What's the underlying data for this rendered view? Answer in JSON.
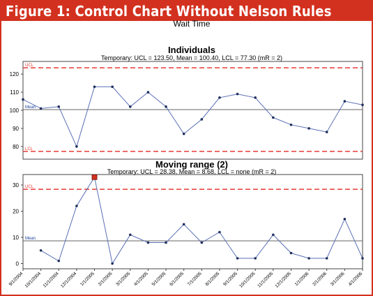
{
  "figure": {
    "banner_title": "Figure 1: Control Chart Without Nelson Rules",
    "banner_color": "#d3311f"
  },
  "chart_data": [
    {
      "type": "line",
      "title": "Individuals",
      "suptitle": "Wait Time",
      "subtitle": "Temporary: UCL = 123.50, Mean = 100.40, LCL = 77.30 (mR = 2)",
      "ylim": [
        73,
        127
      ],
      "yticks": [
        80,
        90,
        100,
        110,
        120
      ],
      "grid": false,
      "line_color": "#5a6fb5",
      "limit_color": "#e83a36",
      "center_color": "#666666",
      "limits": {
        "ucl": 123.5,
        "mean": 100.4,
        "lcl": 77.3
      },
      "limit_labels": {
        "ucl": "UCL",
        "mean": "Mean",
        "lcl": "LCL"
      },
      "values": [
        106,
        101,
        102,
        80,
        113,
        113,
        102,
        110,
        102,
        87,
        95,
        107,
        109,
        107,
        96,
        92,
        90,
        88,
        105,
        103
      ]
    },
    {
      "type": "line",
      "title": "Moving range (2)",
      "subtitle": "Temporary: UCL = 28.38, Mean = 8.68, LCL = none (mR = 2)",
      "ylim": [
        -2,
        34
      ],
      "yticks": [
        0,
        10,
        20,
        30
      ],
      "grid": false,
      "line_color": "#5a6fb5",
      "limit_color": "#e83a36",
      "center_color": "#666666",
      "flag_color": "#d3311f",
      "limits": {
        "ucl": 28.38,
        "mean": 8.68
      },
      "limit_labels": {
        "ucl": "UCL",
        "mean": "Mean"
      },
      "values": [
        null,
        5,
        1,
        22,
        33,
        0,
        11,
        8,
        8,
        15,
        8,
        12,
        2,
        2,
        11,
        4,
        2,
        2,
        17,
        2
      ],
      "flagged_index": 4
    }
  ],
  "x_axis": {
    "categories": [
      "9/1/2004",
      "10/1/2004",
      "11/1/2004",
      "12/1/2004",
      "1/1/2005",
      "2/1/2005",
      "3/1/2005",
      "4/1/2005",
      "5/1/2005",
      "6/1/2005",
      "7/1/2005",
      "8/1/2005",
      "9/1/2005",
      "10/1/2005",
      "11/1/2005",
      "12/1/2005",
      "1/1/2006",
      "2/1/2006",
      "3/1/2006",
      "4/1/2006"
    ]
  }
}
